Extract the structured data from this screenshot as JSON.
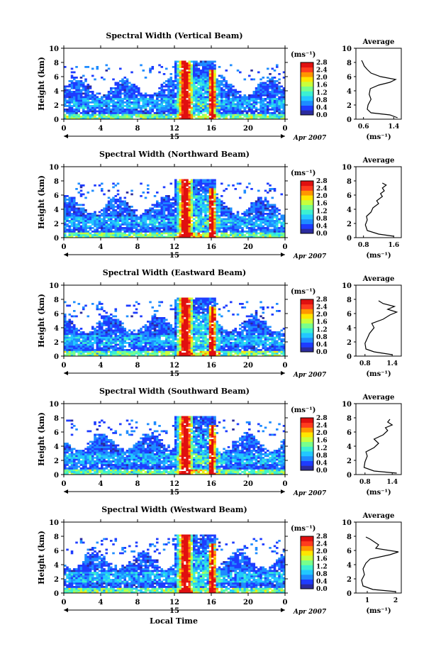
{
  "figure": {
    "xaxis_label": "Local Time",
    "date_label": "Apr 2007",
    "day_label": "15",
    "colorbar_unit": "(ms⁻¹)",
    "colorbar_ticks": [
      "0.0",
      "0.4",
      "0.8",
      "1.2",
      "1.6",
      "2.0",
      "2.4",
      "2.8"
    ],
    "colorbar_range": [
      0,
      2.8
    ],
    "colormap": [
      "#2b2b9e",
      "#1e3cff",
      "#1e8cff",
      "#22c8ff",
      "#3cf0d2",
      "#78ff8c",
      "#c8ff3c",
      "#ffe600",
      "#ff9600",
      "#ff3c1e",
      "#e01010"
    ],
    "average_title": "Average",
    "average_xlabel": "(ms⁻¹)"
  },
  "chart_data": [
    {
      "type": "heatmap",
      "title": "Spectral Width (Vertical Beam)",
      "ylabel": "Height (km)",
      "xlabel": "Local Time",
      "x_ticks": [
        "0",
        "4",
        "8",
        "12",
        "16",
        "20",
        "0"
      ],
      "xlim": [
        0,
        24
      ],
      "y_ticks": [
        "0",
        "2",
        "4",
        "6",
        "8",
        "10"
      ],
      "ylim": [
        0,
        10
      ],
      "colorbar": {
        "label": "(ms⁻¹)",
        "ticks": [
          "0.0",
          "0.4",
          "0.8",
          "1.2",
          "1.6",
          "2.0",
          "2.4",
          "2.8"
        ],
        "range": [
          0,
          2.8
        ]
      }
    },
    {
      "type": "line",
      "title": "Average",
      "xlabel": "(ms⁻¹)",
      "x_ticks": [
        "0.6",
        "1.4"
      ],
      "xlim": [
        0.4,
        1.6
      ],
      "y_ticks": [
        "0",
        "2",
        "4",
        "6",
        "8",
        "10"
      ],
      "ylim": [
        0,
        10
      ],
      "series": [
        {
          "x": [
            1.5,
            1.3,
            0.8,
            0.7,
            0.72,
            0.8,
            0.75,
            0.78,
            1.0,
            1.3,
            1.45,
            1.05,
            0.8,
            0.7,
            0.62,
            0.58,
            0.55
          ],
          "y": [
            0.2,
            0.6,
            0.9,
            1.4,
            2.0,
            2.8,
            3.5,
            4.3,
            4.8,
            5.2,
            5.6,
            6.0,
            6.5,
            7.0,
            7.5,
            8.0,
            8.3
          ]
        }
      ]
    },
    {
      "type": "heatmap",
      "title": "Spectral Width (Northward Beam)",
      "ylabel": "Height (km)",
      "xlabel": "Local Time",
      "x_ticks": [
        "0",
        "4",
        "8",
        "12",
        "16",
        "20",
        "0"
      ],
      "xlim": [
        0,
        24
      ],
      "y_ticks": [
        "0",
        "2",
        "4",
        "6",
        "8",
        "10"
      ],
      "ylim": [
        0,
        10
      ],
      "colorbar": {
        "label": "(ms⁻¹)",
        "ticks": [
          "0.0",
          "0.4",
          "0.8",
          "1.2",
          "1.6",
          "2.0",
          "2.4",
          "2.8"
        ],
        "range": [
          0,
          2.8
        ]
      }
    },
    {
      "type": "line",
      "title": "Average",
      "xlabel": "(ms⁻¹)",
      "x_ticks": [
        "0.8",
        "1.6"
      ],
      "xlim": [
        0.6,
        1.8
      ],
      "y_ticks": [
        "0",
        "2",
        "4",
        "6",
        "8",
        "10"
      ],
      "ylim": [
        0,
        10
      ],
      "series": [
        {
          "x": [
            1.6,
            1.2,
            0.9,
            0.85,
            0.9,
            0.88,
            1.0,
            1.05,
            1.2,
            1.15,
            1.3,
            1.25,
            1.35,
            1.3,
            1.4,
            1.3
          ],
          "y": [
            0.2,
            0.5,
            1.0,
            1.8,
            2.5,
            3.0,
            3.6,
            4.2,
            4.8,
            5.2,
            5.8,
            6.2,
            6.6,
            7.0,
            7.4,
            7.7
          ]
        }
      ]
    },
    {
      "type": "heatmap",
      "title": "Spectral Width (Eastward Beam)",
      "ylabel": "Height (km)",
      "xlabel": "Local Time",
      "x_ticks": [
        "0",
        "4",
        "8",
        "12",
        "16",
        "20",
        "0"
      ],
      "xlim": [
        0,
        24
      ],
      "y_ticks": [
        "0",
        "2",
        "4",
        "6",
        "8",
        "10"
      ],
      "ylim": [
        0,
        10
      ],
      "colorbar": {
        "label": "(ms⁻¹)",
        "ticks": [
          "0.0",
          "0.4",
          "0.8",
          "1.2",
          "1.6",
          "2.0",
          "2.4",
          "2.8"
        ],
        "range": [
          0,
          2.8
        ]
      }
    },
    {
      "type": "line",
      "title": "Average",
      "xlabel": "(ms⁻¹)",
      "x_ticks": [
        "0.8",
        "1.4"
      ],
      "xlim": [
        0.6,
        1.6
      ],
      "y_ticks": [
        "0",
        "2",
        "4",
        "6",
        "8",
        "10"
      ],
      "ylim": [
        0,
        10
      ],
      "series": [
        {
          "x": [
            1.4,
            1.0,
            0.82,
            0.8,
            0.85,
            0.9,
            1.0,
            0.95,
            1.2,
            1.35,
            1.5,
            1.3,
            1.45,
            1.2,
            1.1
          ],
          "y": [
            0.2,
            0.6,
            1.0,
            1.8,
            2.5,
            3.2,
            4.0,
            4.6,
            5.2,
            5.8,
            6.2,
            6.6,
            7.0,
            7.4,
            7.8
          ]
        }
      ]
    },
    {
      "type": "heatmap",
      "title": "Spectral Width (Southward Beam)",
      "ylabel": "Height (km)",
      "xlabel": "Local Time",
      "x_ticks": [
        "0",
        "4",
        "8",
        "12",
        "16",
        "20",
        "0"
      ],
      "xlim": [
        0,
        24
      ],
      "y_ticks": [
        "0",
        "2",
        "4",
        "6",
        "8",
        "10"
      ],
      "ylim": [
        0,
        10
      ],
      "colorbar": {
        "label": "(ms⁻¹)",
        "ticks": [
          "0.0",
          "0.4",
          "0.8",
          "1.2",
          "1.6",
          "2.0",
          "2.4",
          "2.8"
        ],
        "range": [
          0,
          2.8
        ]
      }
    },
    {
      "type": "line",
      "title": "Average",
      "xlabel": "(ms⁻¹)",
      "x_ticks": [
        "0.8",
        "1.4"
      ],
      "xlim": [
        0.6,
        1.6
      ],
      "y_ticks": [
        "0",
        "2",
        "4",
        "6",
        "8",
        "10"
      ],
      "ylim": [
        0,
        10
      ],
      "series": [
        {
          "x": [
            1.5,
            1.0,
            0.78,
            0.8,
            0.85,
            0.82,
            1.0,
            1.1,
            1.0,
            1.2,
            1.3,
            1.25,
            1.4,
            1.3,
            1.35
          ],
          "y": [
            0.2,
            0.5,
            1.0,
            1.8,
            2.6,
            3.2,
            3.8,
            4.4,
            5.0,
            5.6,
            6.2,
            6.6,
            7.0,
            7.4,
            7.8
          ]
        }
      ]
    },
    {
      "type": "heatmap",
      "title": "Spectral Width (Westward Beam)",
      "ylabel": "Height (km)",
      "xlabel": "Local Time",
      "x_ticks": [
        "0",
        "4",
        "8",
        "12",
        "16",
        "20",
        "0"
      ],
      "xlim": [
        0,
        24
      ],
      "y_ticks": [
        "0",
        "2",
        "4",
        "6",
        "8",
        "10"
      ],
      "ylim": [
        0,
        10
      ],
      "colorbar": {
        "label": "(ms⁻¹)",
        "ticks": [
          "0.0",
          "0.4",
          "0.8",
          "1.2",
          "1.6",
          "2.0",
          "2.4",
          "2.8"
        ],
        "range": [
          0,
          2.8
        ]
      }
    },
    {
      "type": "line",
      "title": "Average",
      "xlabel": "(ms⁻¹)",
      "x_ticks": [
        "1",
        "2"
      ],
      "xlim": [
        0.6,
        2.2
      ],
      "y_ticks": [
        "0",
        "2",
        "4",
        "6",
        "8",
        "10"
      ],
      "ylim": [
        0,
        10
      ],
      "series": [
        {
          "x": [
            2.0,
            1.2,
            0.85,
            0.8,
            0.9,
            0.85,
            0.95,
            1.1,
            1.8,
            2.1,
            1.3,
            1.4,
            1.25,
            1.1,
            0.95
          ],
          "y": [
            0.2,
            0.5,
            1.0,
            1.8,
            2.6,
            3.4,
            4.2,
            4.8,
            5.4,
            5.8,
            6.3,
            6.8,
            7.2,
            7.6,
            7.9
          ]
        }
      ]
    }
  ]
}
